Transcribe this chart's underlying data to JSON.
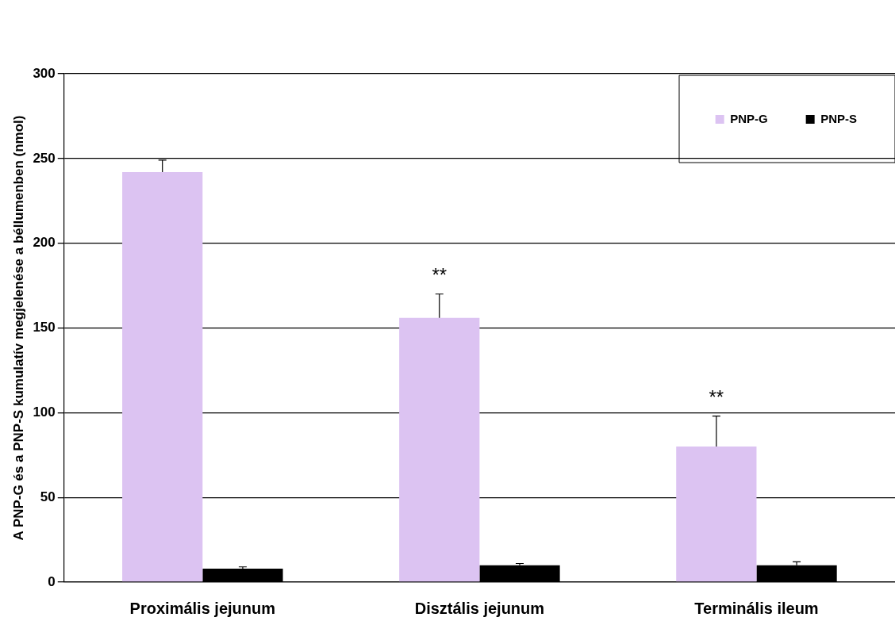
{
  "chart_data": {
    "type": "bar",
    "ylabel": "A PNP-G és a PNP-S kumulatív megjelenése a béllumenben (nmol)",
    "categories": [
      "Proximális jejunum",
      "Disztális jejunum",
      "Terminális ileum"
    ],
    "series": [
      {
        "name": "PNP-G",
        "color": "#dcc3f2",
        "values": [
          242,
          156,
          80
        ],
        "errors": [
          [
            242,
            249
          ],
          [
            156,
            170
          ],
          [
            80,
            98
          ]
        ]
      },
      {
        "name": "PNP-S",
        "color": "#000000",
        "values": [
          8,
          10,
          10
        ],
        "errors": [
          [
            8,
            9
          ],
          [
            10,
            11
          ],
          [
            10,
            12
          ]
        ]
      }
    ],
    "ylim": [
      0,
      300
    ],
    "yticks": [
      0,
      50,
      100,
      150,
      200,
      250,
      300
    ],
    "grid": "y",
    "legend": "top right",
    "annotations": [
      {
        "text": "**",
        "x": "Disztális jejunum",
        "y": 156
      },
      {
        "text": "**",
        "x": "Terminális ileum",
        "y": 80
      }
    ]
  }
}
